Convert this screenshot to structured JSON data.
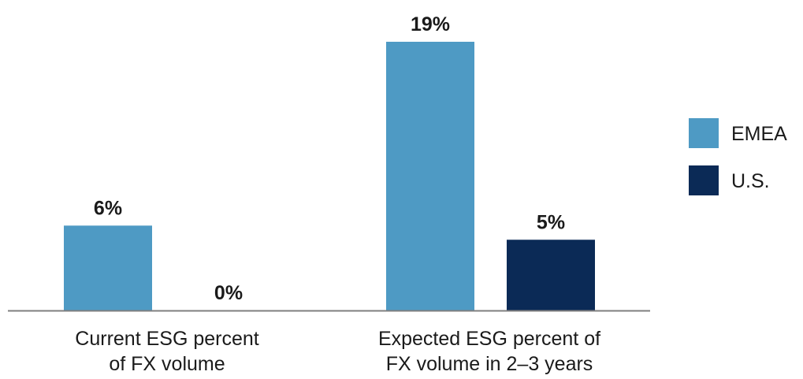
{
  "chart_data": {
    "type": "bar",
    "title": "",
    "xlabel": "",
    "ylabel": "",
    "ylim": [
      0,
      19
    ],
    "grid": false,
    "legend_position": "right",
    "categories": [
      [
        "Current ESG percent",
        "of FX volume"
      ],
      [
        "Expected ESG percent of",
        "FX volume in 2–3 years"
      ]
    ],
    "series": [
      {
        "name": "EMEA",
        "color": "#4e9ac4",
        "values": [
          6,
          19
        ],
        "labels": [
          "6%",
          "19%"
        ]
      },
      {
        "name": "U.S.",
        "color": "#0b2a56",
        "values": [
          0,
          5
        ],
        "labels": [
          "0%",
          "5%"
        ]
      }
    ],
    "axis_color": "#7f7f7f"
  }
}
